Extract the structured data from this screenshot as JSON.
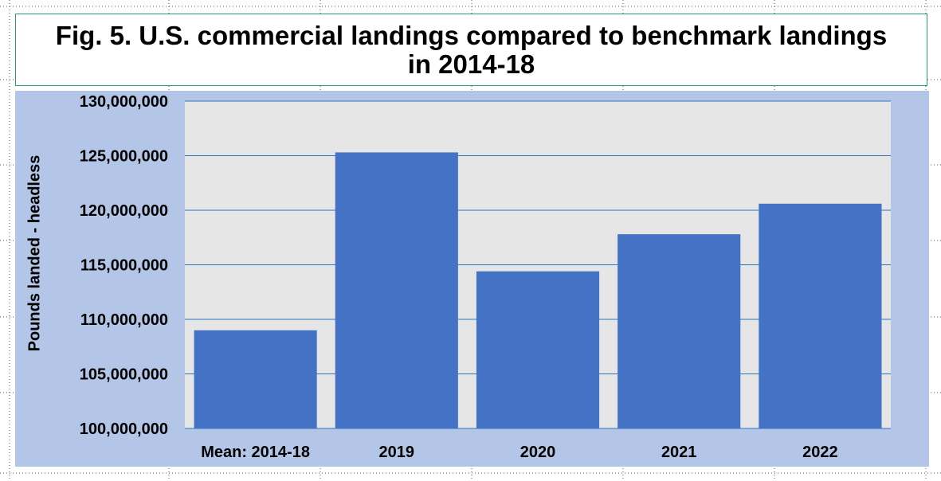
{
  "chart_data": {
    "type": "bar",
    "title": "Fig. 5. U.S. commercial landings compared to benchmark landings in 2014-18",
    "ylabel": "Pounds landed - headless",
    "xlabel": "",
    "categories": [
      "Mean: 2014-18",
      "2019",
      "2020",
      "2021",
      "2022"
    ],
    "values": [
      109000000,
      125300000,
      114400000,
      117800000,
      120600000
    ],
    "ylim": [
      100000000,
      130000000
    ],
    "yticks": [
      "100,000,000",
      "105,000,000",
      "110,000,000",
      "115,000,000",
      "120,000,000",
      "125,000,000",
      "130,000,000"
    ],
    "ytick_values": [
      100000000,
      105000000,
      110000000,
      115000000,
      120000000,
      125000000,
      130000000
    ],
    "grid": true,
    "colors": {
      "bar": "#4472c4",
      "plot_bg": "#e7e6e6",
      "chart_bg": "#b4c6e7",
      "gridline": "#2e75b6"
    }
  }
}
